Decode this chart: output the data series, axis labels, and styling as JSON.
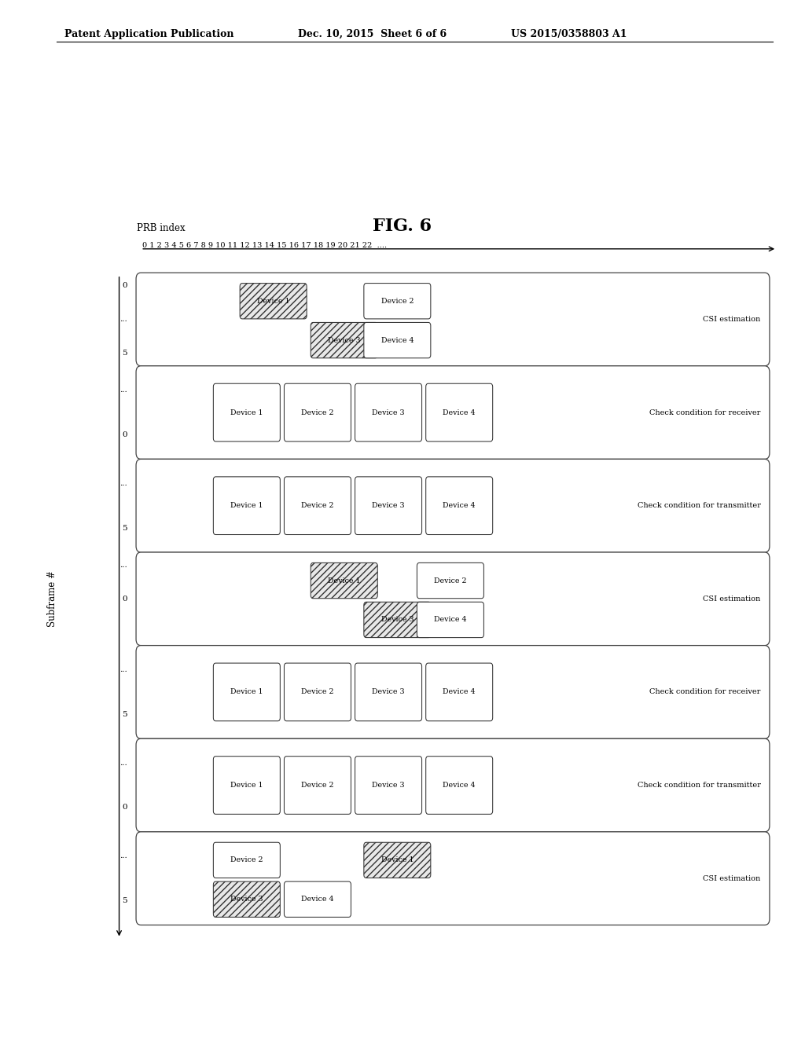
{
  "title": "FIG. 6",
  "header_left": "Patent Application Publication",
  "header_mid": "Dec. 10, 2015  Sheet 6 of 6",
  "header_right": "US 2015/0358803 A1",
  "prb_label": "PRB index",
  "prb_numbers": "0 1 2 3 4 5 6 7 8 9 10 11 12 13 14 15 16 17 18 19 20 21 22  ....",
  "y_axis_label": "Subframe #",
  "rows": [
    {
      "type": "CSI",
      "label": "CSI estimation",
      "devices_top": [
        {
          "name": "Device 1",
          "x": 5.5,
          "shaded": true
        },
        {
          "name": "Device 2",
          "x": 12.5,
          "shaded": false
        }
      ],
      "devices_bot": [
        {
          "name": "Device 3",
          "x": 9.5,
          "shaded": true
        },
        {
          "name": "Device 4",
          "x": 12.5,
          "shaded": false
        }
      ]
    },
    {
      "type": "check",
      "label": "Check condition for receiver",
      "devices": [
        {
          "name": "Device 1",
          "x": 4.0
        },
        {
          "name": "Device 2",
          "x": 8.0
        },
        {
          "name": "Device 3",
          "x": 12.0
        },
        {
          "name": "Device 4",
          "x": 16.0
        }
      ]
    },
    {
      "type": "check",
      "label": "Check condition for transmitter",
      "devices": [
        {
          "name": "Device 1",
          "x": 4.0
        },
        {
          "name": "Device 2",
          "x": 8.0
        },
        {
          "name": "Device 3",
          "x": 12.0
        },
        {
          "name": "Device 4",
          "x": 16.0
        }
      ]
    },
    {
      "type": "CSI",
      "label": "CSI estimation",
      "devices_top": [
        {
          "name": "Device 1",
          "x": 9.5,
          "shaded": true
        },
        {
          "name": "Device 2",
          "x": 15.5,
          "shaded": false
        }
      ],
      "devices_bot": [
        {
          "name": "Device 3",
          "x": 12.5,
          "shaded": true
        },
        {
          "name": "Device 4",
          "x": 15.5,
          "shaded": false
        }
      ]
    },
    {
      "type": "check",
      "label": "Check condition for receiver",
      "devices": [
        {
          "name": "Device 1",
          "x": 4.0
        },
        {
          "name": "Device 2",
          "x": 8.0
        },
        {
          "name": "Device 3",
          "x": 12.0
        },
        {
          "name": "Device 4",
          "x": 16.0
        }
      ]
    },
    {
      "type": "check",
      "label": "Check condition for transmitter",
      "devices": [
        {
          "name": "Device 1",
          "x": 4.0
        },
        {
          "name": "Device 2",
          "x": 8.0
        },
        {
          "name": "Device 3",
          "x": 12.0
        },
        {
          "name": "Device 4",
          "x": 16.0
        }
      ]
    },
    {
      "type": "CSI",
      "label": "CSI estimation",
      "devices_top": [
        {
          "name": "Device 2",
          "x": 4.0,
          "shaded": false
        },
        {
          "name": "Device 1",
          "x": 12.5,
          "shaded": true
        }
      ],
      "devices_bot": [
        {
          "name": "Device 3",
          "x": 4.0,
          "shaded": true
        },
        {
          "name": "Device 4",
          "x": 8.0,
          "shaded": false
        }
      ]
    }
  ],
  "ytick_configs": [
    [
      [
        "0",
        0.88
      ],
      [
        "...",
        0.5
      ],
      [
        "5",
        0.12
      ]
    ],
    [
      [
        "...",
        0.75
      ],
      [
        "0",
        0.25
      ]
    ],
    [
      [
        "...",
        0.75
      ],
      [
        "5",
        0.25
      ]
    ],
    [
      [
        "...",
        0.88
      ],
      [
        "0",
        0.5
      ],
      [
        "",
        0.12
      ]
    ],
    [
      [
        "...",
        0.75
      ],
      [
        "5",
        0.25
      ]
    ],
    [
      [
        "...",
        0.75
      ],
      [
        "0",
        0.25
      ]
    ],
    [
      [
        "...",
        0.75
      ],
      [
        "5",
        0.25
      ]
    ]
  ],
  "bg_color": "#ffffff"
}
